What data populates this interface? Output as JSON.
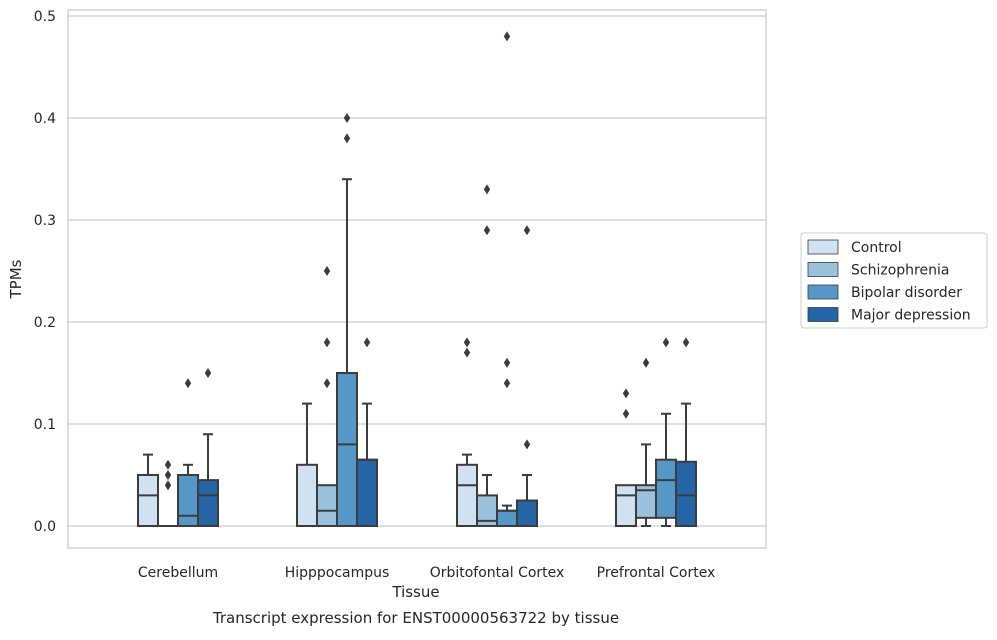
{
  "chart_data": {
    "type": "box",
    "title": "Transcript expression for ENST00000563722 by tissue",
    "xlabel": "Tissue",
    "ylabel": "TPMs",
    "ylim": [
      -0.023,
      0.505
    ],
    "yticks": [
      0.0,
      0.1,
      0.2,
      0.3,
      0.4,
      0.5
    ],
    "ytick_labels": [
      "0.0",
      "0.1",
      "0.2",
      "0.3",
      "0.4",
      "0.5"
    ],
    "grid": "horizontal",
    "legend_position": "right",
    "categories": [
      "Cerebellum",
      "Hipppocampus",
      "Orbitofontal Cortex",
      "Prefrontal Cortex"
    ],
    "series": [
      {
        "name": "Control",
        "color": "#d0e1f2",
        "boxes": [
          {
            "min": 0.0,
            "q1": 0.0,
            "median": 0.03,
            "q3": 0.05,
            "max": 0.07,
            "outliers": []
          },
          {
            "min": 0.0,
            "q1": 0.0,
            "median": 0.0,
            "q3": 0.06,
            "max": 0.12,
            "outliers": []
          },
          {
            "min": 0.0,
            "q1": 0.0,
            "median": 0.04,
            "q3": 0.06,
            "max": 0.07,
            "outliers": [
              0.17,
              0.18
            ]
          },
          {
            "min": 0.0,
            "q1": 0.0,
            "median": 0.03,
            "q3": 0.04,
            "max": 0.04,
            "outliers": [
              0.11,
              0.13
            ]
          }
        ]
      },
      {
        "name": "Schizophrenia",
        "color": "#9ac2dc",
        "boxes": [
          {
            "min": 0.0,
            "q1": 0.0,
            "median": 0.0,
            "q3": 0.0,
            "max": 0.0,
            "outliers": [
              0.04,
              0.05,
              0.06
            ]
          },
          {
            "min": 0.0,
            "q1": 0.0,
            "median": 0.015,
            "q3": 0.04,
            "max": 0.04,
            "outliers": [
              0.14,
              0.18,
              0.25
            ]
          },
          {
            "min": 0.0,
            "q1": 0.0,
            "median": 0.005,
            "q3": 0.03,
            "max": 0.05,
            "outliers": [
              0.29,
              0.33
            ]
          },
          {
            "min": 0.0,
            "q1": 0.008,
            "median": 0.035,
            "q3": 0.04,
            "max": 0.08,
            "outliers": [
              0.16
            ]
          }
        ]
      },
      {
        "name": "Bipolar disorder",
        "color": "#5597c6",
        "boxes": [
          {
            "min": 0.0,
            "q1": 0.0,
            "median": 0.01,
            "q3": 0.05,
            "max": 0.06,
            "outliers": [
              0.14
            ]
          },
          {
            "min": 0.0,
            "q1": 0.0,
            "median": 0.08,
            "q3": 0.15,
            "max": 0.34,
            "outliers": [
              0.38,
              0.4
            ]
          },
          {
            "min": 0.0,
            "q1": 0.0,
            "median": 0.015,
            "q3": 0.015,
            "max": 0.02,
            "outliers": [
              0.14,
              0.16,
              0.48
            ]
          },
          {
            "min": 0.0,
            "q1": 0.008,
            "median": 0.045,
            "q3": 0.065,
            "max": 0.11,
            "outliers": [
              0.18
            ]
          }
        ]
      },
      {
        "name": "Major depression",
        "color": "#2565a7",
        "boxes": [
          {
            "min": 0.0,
            "q1": 0.0,
            "median": 0.03,
            "q3": 0.045,
            "max": 0.09,
            "outliers": [
              0.15
            ]
          },
          {
            "min": 0.0,
            "q1": 0.0,
            "median": 0.065,
            "q3": 0.065,
            "max": 0.12,
            "outliers": [
              0.18
            ]
          },
          {
            "min": 0.0,
            "q1": 0.0,
            "median": 0.025,
            "q3": 0.025,
            "max": 0.05,
            "outliers": [
              0.08,
              0.29
            ]
          },
          {
            "min": 0.0,
            "q1": 0.0,
            "median": 0.03,
            "q3": 0.063,
            "max": 0.12,
            "outliers": [
              0.18
            ]
          }
        ]
      }
    ]
  }
}
